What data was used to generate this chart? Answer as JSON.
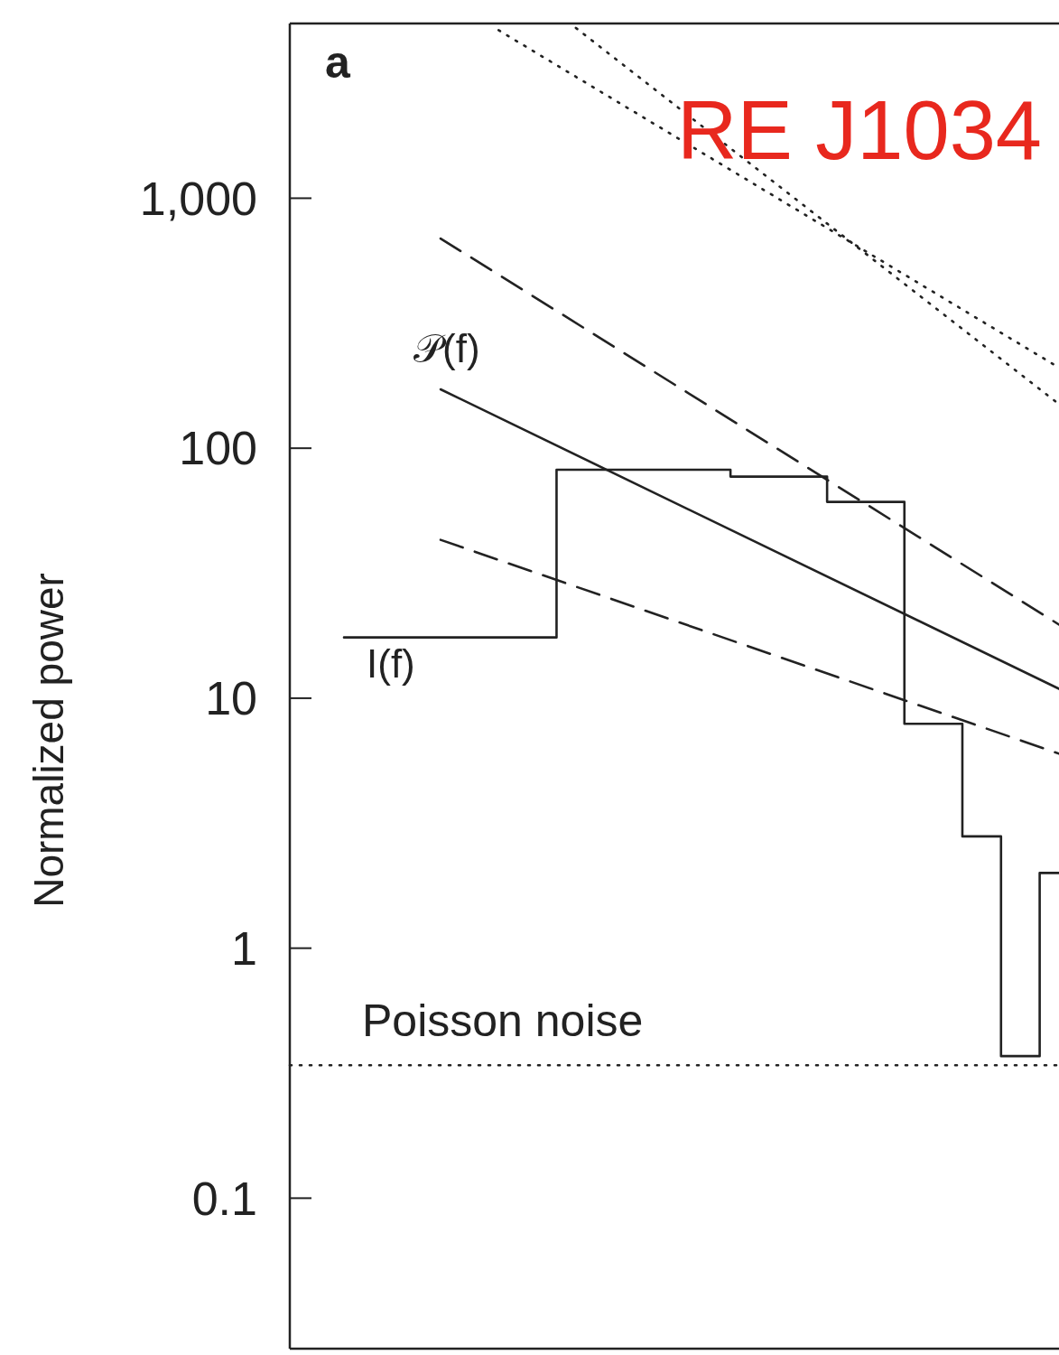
{
  "chart_data": {
    "type": "line",
    "xlabel": null,
    "ylabel": "Normalized power",
    "annotations": [
      "a",
      "RE J1034"
    ],
    "categories": [
      null,
      null,
      null,
      null,
      null,
      null,
      null,
      null,
      null,
      null,
      null,
      null,
      null,
      null,
      null,
      null,
      null,
      null,
      null,
      null,
      null,
      null,
      null,
      null,
      null,
      null,
      null,
      null,
      null,
      null,
      null,
      null,
      null,
      null,
      null,
      null,
      null,
      null
    ],
    "series": [
      {
        "name": "I(f)",
        "type": "step",
        "color": "#222222",
        "line_style": "solid",
        "values": [
          17.5,
          17.5,
          17.5,
          17.5,
          17.5,
          17.5,
          17.5,
          17.5,
          17.5,
          17.5,
          17.5,
          82,
          82,
          82,
          82,
          82,
          82,
          82,
          82,
          82,
          77,
          77,
          77,
          77,
          77,
          61,
          61,
          61,
          61,
          7.9,
          7.9,
          7.9,
          2.8,
          2.8,
          0.37,
          0.37,
          2.0,
          2.0
        ]
      },
      {
        "name": "𝒫(f)",
        "color": "#222222",
        "line_style": "solid",
        "values": [
          null,
          null,
          null,
          null,
          null,
          172,
          null,
          null,
          null,
          null,
          null,
          null,
          null,
          null,
          null,
          null,
          null,
          null,
          null,
          null,
          null,
          null,
          null,
          null,
          null,
          null,
          null,
          null,
          null,
          null,
          null,
          null,
          null,
          null,
          null,
          null,
          null,
          10.9
        ]
      },
      {
        "color": "#222222",
        "line_style": "dashed",
        "values": [
          null,
          null,
          null,
          null,
          null,
          690,
          null,
          null,
          null,
          null,
          null,
          null,
          null,
          null,
          null,
          null,
          null,
          null,
          null,
          null,
          null,
          null,
          null,
          null,
          null,
          null,
          null,
          null,
          null,
          null,
          null,
          null,
          null,
          null,
          null,
          null,
          null,
          19.7
        ]
      },
      {
        "color": "#222222",
        "line_style": "dashed",
        "values": [
          null,
          null,
          null,
          null,
          null,
          43,
          null,
          null,
          null,
          null,
          null,
          null,
          null,
          null,
          null,
          null,
          null,
          null,
          null,
          null,
          null,
          null,
          null,
          null,
          null,
          null,
          null,
          null,
          null,
          null,
          null,
          null,
          null,
          null,
          null,
          null,
          null,
          6.0
        ]
      },
      {
        "color": "#222222",
        "line_style": "dotted",
        "values": [
          null,
          null,
          null,
          null,
          null,
          null,
          null,
          null,
          4700,
          null,
          null,
          null,
          null,
          null,
          null,
          null,
          null,
          null,
          null,
          null,
          null,
          null,
          null,
          null,
          null,
          null,
          null,
          null,
          null,
          null,
          null,
          null,
          null,
          null,
          null,
          null,
          null,
          210
        ]
      },
      {
        "color": "#222222",
        "line_style": "dotted",
        "values": [
          null,
          null,
          null,
          null,
          null,
          null,
          null,
          null,
          null,
          null,
          null,
          null,
          4800,
          null,
          null,
          null,
          null,
          null,
          null,
          null,
          null,
          null,
          null,
          null,
          null,
          null,
          null,
          null,
          null,
          null,
          null,
          null,
          null,
          null,
          null,
          null,
          null,
          150
        ]
      }
    ],
    "ref_lines": [
      {
        "axis": "y",
        "value": 0.34,
        "label": "Poisson noise",
        "line_style": "dotted",
        "color": "#222222"
      }
    ],
    "log": "y",
    "ylim": [
      0.025,
      5000
    ],
    "yticks": [
      0.1,
      1,
      10,
      100,
      {
        "value": 1000,
        "label": "1,000"
      }
    ],
    "tick_labels": "y",
    "grid": false,
    "marker": "none"
  }
}
